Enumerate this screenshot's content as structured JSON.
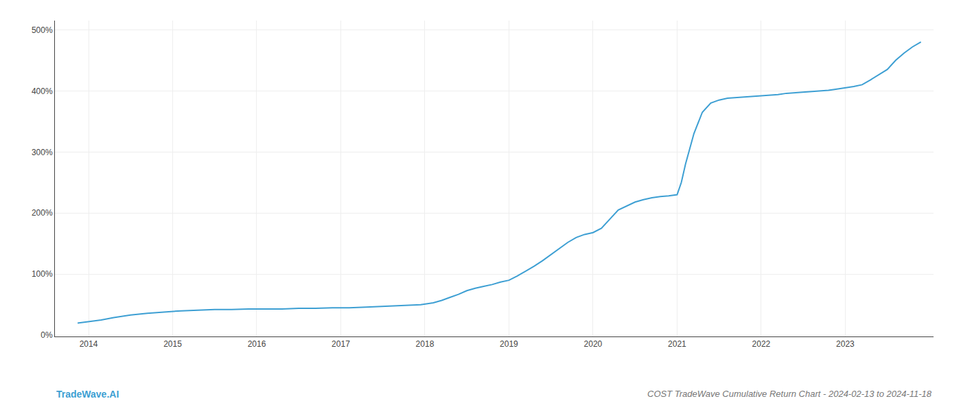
{
  "chart_data": {
    "type": "line",
    "title": "COST TradeWave Cumulative Return Chart - 2024-02-13 to 2024-11-18",
    "annotations": [
      "TradeWave.AI"
    ],
    "color": "#3d9fd3",
    "grid": true,
    "x": [
      2013.87,
      2014.0,
      2014.15,
      2014.3,
      2014.5,
      2014.7,
      2014.9,
      2015.1,
      2015.3,
      2015.5,
      2015.7,
      2015.9,
      2016.1,
      2016.3,
      2016.5,
      2016.7,
      2016.9,
      2017.1,
      2017.3,
      2017.5,
      2017.7,
      2017.85,
      2017.95,
      2018.1,
      2018.2,
      2018.3,
      2018.4,
      2018.5,
      2018.6,
      2018.7,
      2018.8,
      2018.9,
      2019.0,
      2019.1,
      2019.2,
      2019.3,
      2019.4,
      2019.5,
      2019.6,
      2019.7,
      2019.8,
      2019.9,
      2020.0,
      2020.1,
      2020.2,
      2020.3,
      2020.5,
      2020.6,
      2020.7,
      2020.8,
      2020.9,
      2021.0,
      2021.05,
      2021.1,
      2021.2,
      2021.3,
      2021.4,
      2021.5,
      2021.6,
      2021.7,
      2021.8,
      2021.9,
      2022.0,
      2022.1,
      2022.2,
      2022.3,
      2022.4,
      2022.5,
      2022.6,
      2022.7,
      2022.8,
      2022.9,
      2023.0,
      2023.1,
      2023.2,
      2023.3,
      2023.5,
      2023.6,
      2023.7,
      2023.8,
      2023.9
    ],
    "values": [
      0.2,
      0.22,
      0.25,
      0.29,
      0.33,
      0.36,
      0.38,
      0.4,
      0.41,
      0.42,
      0.42,
      0.43,
      0.43,
      0.43,
      0.44,
      0.44,
      0.45,
      0.45,
      0.46,
      0.47,
      0.48,
      0.49,
      0.5,
      0.53,
      0.57,
      0.62,
      0.67,
      0.73,
      0.77,
      0.8,
      0.83,
      0.87,
      0.9,
      0.97,
      1.05,
      1.13,
      1.22,
      1.32,
      1.42,
      1.52,
      1.6,
      1.65,
      1.68,
      1.75,
      1.9,
      2.05,
      2.18,
      2.22,
      2.25,
      2.27,
      2.28,
      2.3,
      2.5,
      2.8,
      3.3,
      3.65,
      3.8,
      3.85,
      3.88,
      3.89,
      3.9,
      3.91,
      3.92,
      3.93,
      3.94,
      3.96,
      3.97,
      3.98,
      3.99,
      4.0,
      4.01,
      4.03,
      4.05,
      4.07,
      4.1,
      4.18,
      4.35,
      4.5,
      4.62,
      4.72,
      4.8
    ],
    "xlim": [
      2013.6,
      2024.05
    ],
    "xticks": [
      2014,
      2015,
      2016,
      2017,
      2018,
      2019,
      2020,
      2021,
      2022,
      2023
    ],
    "ylim": [
      -0.02,
      5.15
    ],
    "yticks": [
      {
        "value": 0.0,
        "label": "0%"
      },
      {
        "value": 1.0,
        "label": "100%"
      },
      {
        "value": 2.0,
        "label": "200%"
      },
      {
        "value": 3.0,
        "label": "300%"
      },
      {
        "value": 4.0,
        "label": "400%"
      },
      {
        "value": 5.0,
        "label": "500%"
      }
    ]
  }
}
